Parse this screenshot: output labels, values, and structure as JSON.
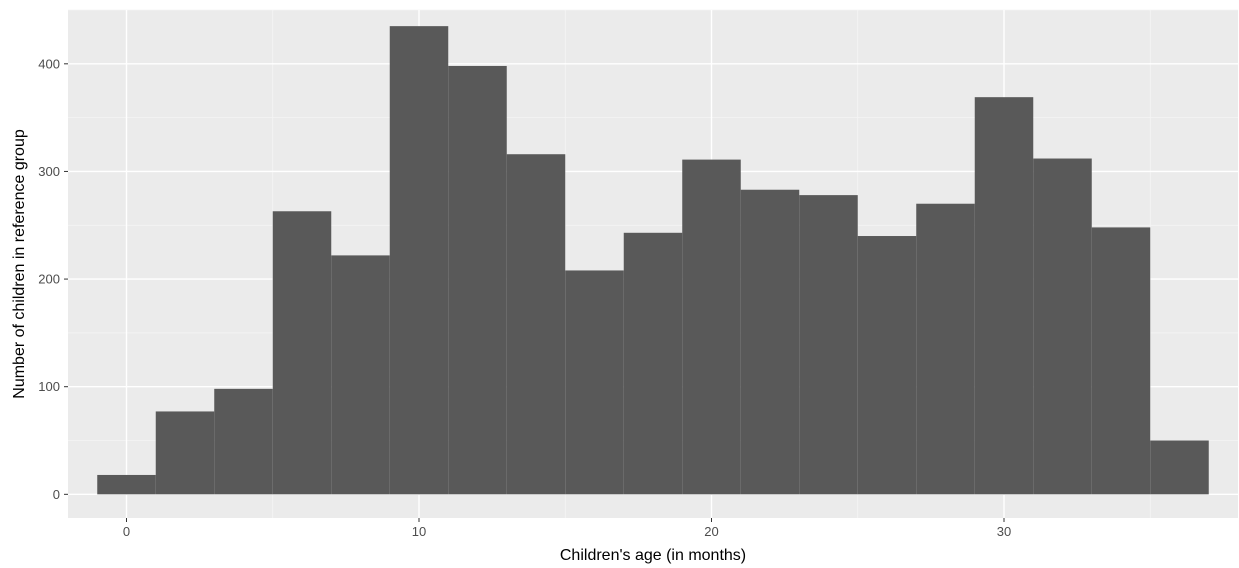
{
  "chart_data": {
    "type": "bar",
    "histogram": true,
    "xlabel": "Children's age (in months)",
    "ylabel": "Number of children in reference group",
    "xlim": [
      -2.0,
      38.0
    ],
    "ylim": [
      -22,
      450
    ],
    "xticks": [
      0,
      10,
      20,
      30
    ],
    "yticks": [
      0,
      100,
      200,
      300,
      400
    ],
    "bin_width": 2,
    "bins": [
      {
        "x0": -1,
        "x1": 1,
        "value": 18
      },
      {
        "x0": 1,
        "x1": 3,
        "value": 77
      },
      {
        "x0": 3,
        "x1": 5,
        "value": 98
      },
      {
        "x0": 5,
        "x1": 7,
        "value": 263
      },
      {
        "x0": 7,
        "x1": 9,
        "value": 222
      },
      {
        "x0": 9,
        "x1": 11,
        "value": 435
      },
      {
        "x0": 11,
        "x1": 13,
        "value": 398
      },
      {
        "x0": 13,
        "x1": 15,
        "value": 316
      },
      {
        "x0": 15,
        "x1": 17,
        "value": 208
      },
      {
        "x0": 17,
        "x1": 19,
        "value": 243
      },
      {
        "x0": 19,
        "x1": 21,
        "value": 311
      },
      {
        "x0": 21,
        "x1": 23,
        "value": 283
      },
      {
        "x0": 23,
        "x1": 25,
        "value": 278
      },
      {
        "x0": 25,
        "x1": 27,
        "value": 240
      },
      {
        "x0": 27,
        "x1": 29,
        "value": 270
      },
      {
        "x0": 29,
        "x1": 31,
        "value": 369
      },
      {
        "x0": 31,
        "x1": 33,
        "value": 312
      },
      {
        "x0": 33,
        "x1": 35,
        "value": 248
      },
      {
        "x0": 35,
        "x1": 37,
        "value": 50
      }
    ],
    "grid": true,
    "colors": {
      "panel_background": "#ebebeb",
      "grid_major": "#ffffff",
      "grid_minor": "#f5f5f5",
      "bar_fill": "#595959",
      "tick_text": "#4d4d4d",
      "axis_title": "#000000"
    }
  }
}
